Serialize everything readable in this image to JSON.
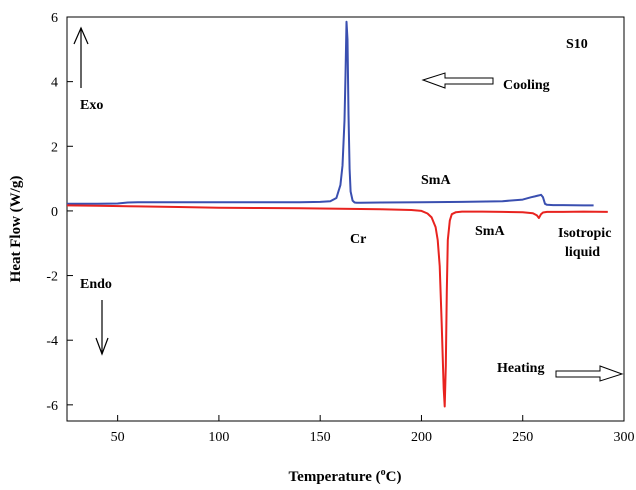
{
  "chart_data": {
    "type": "line",
    "title": "",
    "xlabel": "Temperature (",
    "xlabel_sup": "o",
    "xlabel_tail": "C)",
    "ylabel": "Heat Flow (W/g)",
    "xlim": [
      25,
      300
    ],
    "ylim": [
      -6.5,
      6
    ],
    "x_ticks": [
      50,
      100,
      150,
      200,
      250,
      300
    ],
    "y_ticks": [
      -6,
      -4,
      -2,
      0,
      2,
      4,
      6
    ],
    "grid": false,
    "series": [
      {
        "color": "#3a4fb0",
        "x": [
          25,
          40,
          50,
          55,
          60,
          80,
          100,
          120,
          140,
          150,
          155,
          158,
          160,
          161,
          162,
          162.5,
          163,
          163.5,
          164,
          164.5,
          165,
          166,
          167,
          168,
          170,
          180,
          200,
          220,
          240,
          250,
          254,
          256,
          258,
          259,
          260,
          261,
          262,
          265,
          270,
          280,
          285
        ],
        "y": [
          0.22,
          0.22,
          0.23,
          0.26,
          0.27,
          0.27,
          0.27,
          0.27,
          0.27,
          0.28,
          0.3,
          0.4,
          0.8,
          1.4,
          2.8,
          4.2,
          5.85,
          5.3,
          3.0,
          1.3,
          0.6,
          0.32,
          0.26,
          0.25,
          0.25,
          0.26,
          0.27,
          0.28,
          0.3,
          0.35,
          0.42,
          0.45,
          0.48,
          0.5,
          0.42,
          0.22,
          0.19,
          0.18,
          0.18,
          0.17,
          0.17
        ]
      },
      {
        "color": "#e8231f",
        "x": [
          25,
          40,
          60,
          80,
          100,
          120,
          140,
          160,
          180,
          195,
          200,
          203,
          205,
          207,
          208,
          209,
          210,
          211,
          211.5,
          212,
          212.5,
          213,
          214,
          215,
          217,
          220,
          230,
          240,
          250,
          255,
          257,
          258,
          259,
          260,
          262,
          265,
          270,
          280,
          292
        ],
        "y": [
          0.17,
          0.16,
          0.14,
          0.12,
          0.1,
          0.09,
          0.08,
          0.07,
          0.05,
          0.03,
          0.0,
          -0.08,
          -0.2,
          -0.5,
          -0.9,
          -1.7,
          -3.5,
          -5.5,
          -6.05,
          -4.8,
          -2.5,
          -0.9,
          -0.3,
          -0.1,
          -0.04,
          -0.02,
          -0.02,
          -0.03,
          -0.04,
          -0.07,
          -0.14,
          -0.22,
          -0.1,
          -0.05,
          -0.03,
          -0.03,
          -0.03,
          -0.02,
          -0.03
        ]
      }
    ],
    "annotations": {
      "sample": "S10",
      "cooling": "Cooling",
      "exo": "Exo",
      "smA_upper": "SmA",
      "cr": "Cr",
      "smA_lower": "SmA",
      "isotropic_1": "Isotropic",
      "isotropic_2": "liquid",
      "endo": "Endo",
      "heating": "Heating"
    }
  }
}
